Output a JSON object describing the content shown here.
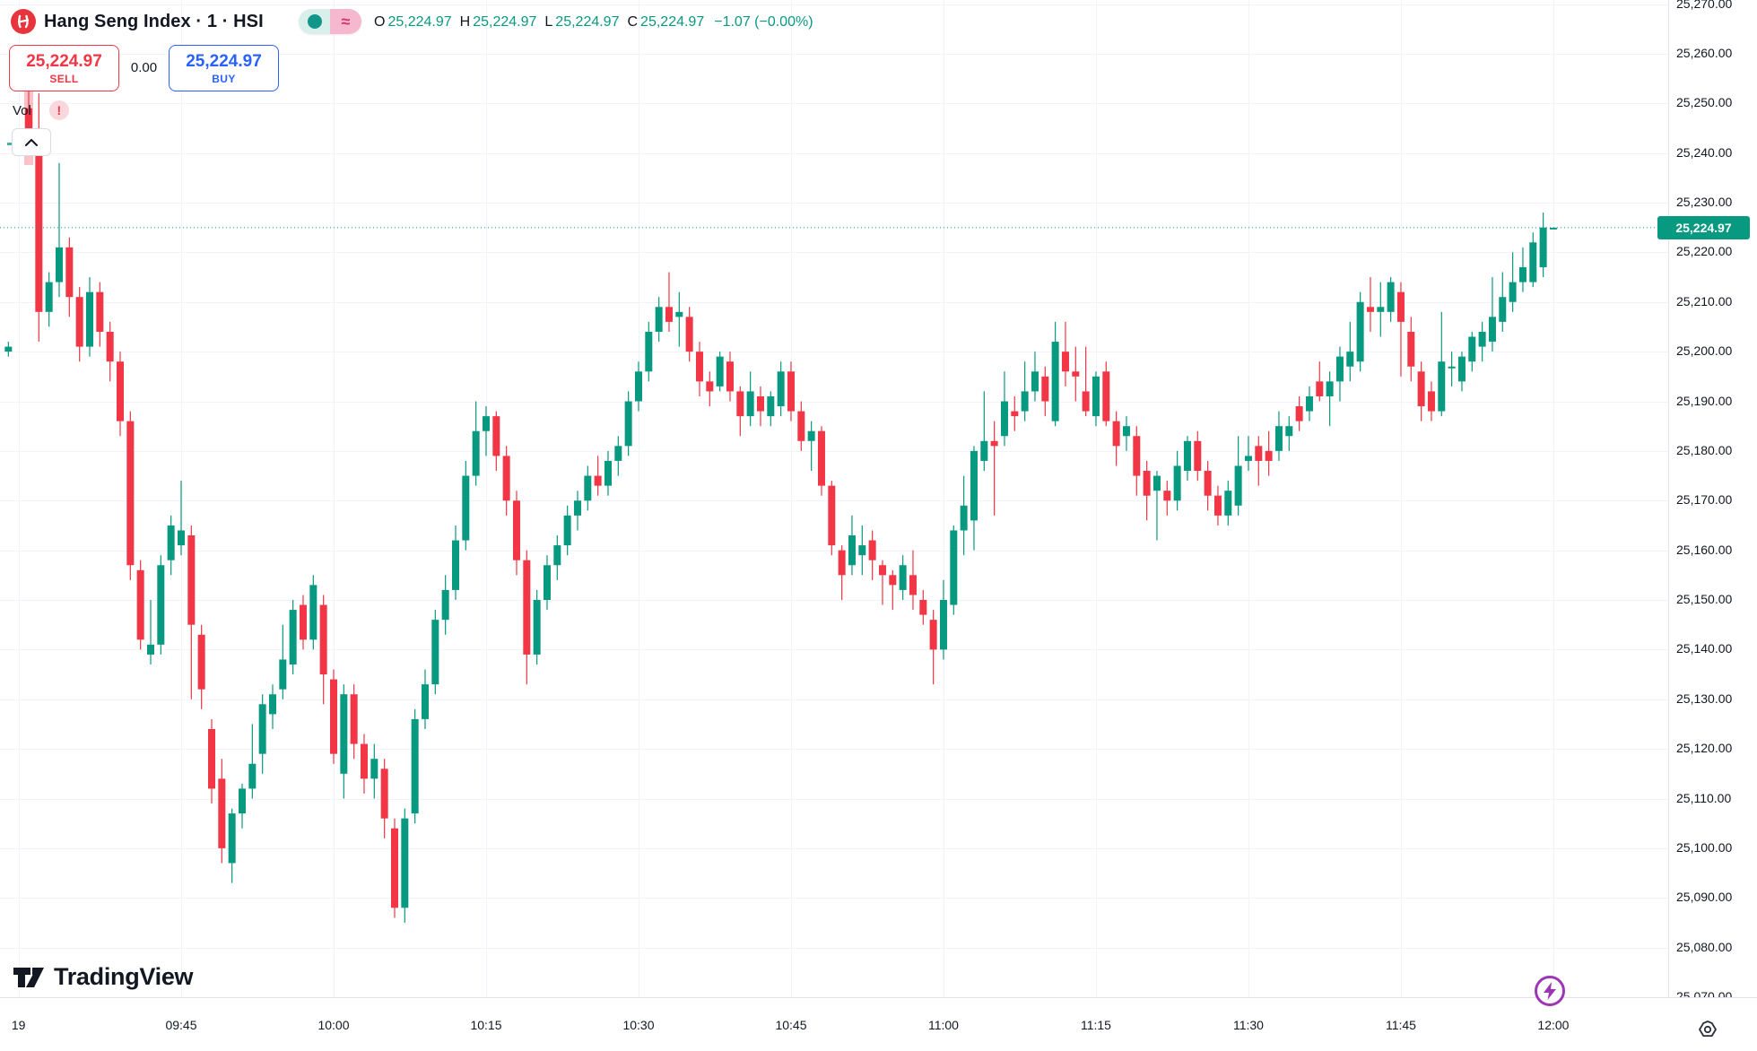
{
  "header": {
    "title": "Hang Seng Index · 1 · HSI",
    "status": {
      "open_icon": "green-dot",
      "approx_symbol": "≈"
    },
    "ohlc": {
      "o_label": "O",
      "o": "25,224.97",
      "h_label": "H",
      "h": "25,224.97",
      "l_label": "L",
      "l": "25,224.97",
      "c_label": "C",
      "c": "25,224.97",
      "change": "−1.07 (−0.00%)"
    }
  },
  "trade_panel": {
    "sell_price": "25,224.97",
    "sell_label": "SELL",
    "spread": "0.00",
    "buy_price": "25,224.97",
    "buy_label": "BUY"
  },
  "indicator": {
    "label": "Vol",
    "warning": "!"
  },
  "watermark": "TradingView",
  "axis": {
    "price_ticks": [
      "25,270.00",
      "25,260.00",
      "25,250.00",
      "25,240.00",
      "25,230.00",
      "25,220.00",
      "25,210.00",
      "25,200.00",
      "25,190.00",
      "25,180.00",
      "25,170.00",
      "25,160.00",
      "25,150.00",
      "25,140.00",
      "25,130.00",
      "25,120.00",
      "25,110.00",
      "25,100.00",
      "25,090.00",
      "25,080.00",
      "25,070.00"
    ],
    "time_ticks": [
      {
        "label": "19",
        "bar": -1
      },
      {
        "label": "09:45",
        "bar": 15
      },
      {
        "label": "10:00",
        "bar": 30
      },
      {
        "label": "10:15",
        "bar": 45
      },
      {
        "label": "10:30",
        "bar": 60
      },
      {
        "label": "10:45",
        "bar": 75
      },
      {
        "label": "11:00",
        "bar": 90
      },
      {
        "label": "11:15",
        "bar": 105
      },
      {
        "label": "11:30",
        "bar": 120
      },
      {
        "label": "11:45",
        "bar": 135
      },
      {
        "label": "12:00",
        "bar": 150
      }
    ],
    "current_price_label": "25,224.97"
  },
  "chart_data": {
    "type": "candlestick",
    "title": "Hang Seng Index, 1 minute, HSI",
    "ylim": [
      25070,
      25270
    ],
    "grid": true,
    "colors": {
      "up": "#089981",
      "down": "#f23645",
      "last_price_line": "#089981",
      "first_bar_highlight": "rgba(242,54,69,0.3)"
    },
    "current_price": 25224.97,
    "prev_bar": {
      "time": "09:28",
      "open": 25200,
      "high": 25202,
      "low": 25199,
      "close": 25201
    },
    "columns": [
      "time",
      "open",
      "high",
      "low",
      "close"
    ],
    "bars": [
      [
        "09:30",
        25249,
        25254,
        25240,
        25245
      ],
      [
        "09:31",
        25245,
        25252,
        25202,
        25208
      ],
      [
        "09:32",
        25208,
        25216,
        25205,
        25214
      ],
      [
        "09:33",
        25214,
        25238,
        25211,
        25221
      ],
      [
        "09:34",
        25221,
        25223,
        25207,
        25211
      ],
      [
        "09:35",
        25211,
        25213,
        25198,
        25201
      ],
      [
        "09:36",
        25201,
        25215,
        25199,
        25212
      ],
      [
        "09:37",
        25212,
        25214,
        25201,
        25204
      ],
      [
        "09:38",
        25204,
        25206,
        25194,
        25198
      ],
      [
        "09:39",
        25198,
        25200,
        25183,
        25186
      ],
      [
        "09:40",
        25186,
        25188,
        25154,
        25157
      ],
      [
        "09:41",
        25156,
        25158,
        25140,
        25142
      ],
      [
        "09:42",
        25139,
        25150,
        25137,
        25141
      ],
      [
        "09:43",
        25141,
        25159,
        25139,
        25157
      ],
      [
        "09:44",
        25158,
        25167,
        25155,
        25165
      ],
      [
        "09:45",
        25161,
        25174,
        25159,
        25164
      ],
      [
        "09:46",
        25163,
        25165,
        25130,
        25145
      ],
      [
        "09:47",
        25143,
        25145,
        25128,
        25132
      ],
      [
        "09:48",
        25124,
        25126,
        25109,
        25112
      ],
      [
        "09:49",
        25114,
        25118,
        25097,
        25100
      ],
      [
        "09:50",
        25097,
        25108,
        25093,
        25107
      ],
      [
        "09:51",
        25107,
        25113,
        25104,
        25112
      ],
      [
        "09:52",
        25112,
        25125,
        25110,
        25117
      ],
      [
        "09:53",
        25119,
        25131,
        25115,
        25129
      ],
      [
        "09:54",
        25127,
        25133,
        25124,
        25131
      ],
      [
        "09:55",
        25132,
        25145,
        25130,
        25138
      ],
      [
        "09:56",
        25137,
        25150,
        25135,
        25148
      ],
      [
        "09:57",
        25149,
        25151,
        25140,
        25142
      ],
      [
        "09:58",
        25142,
        25155,
        25140,
        25153
      ],
      [
        "09:59",
        25149,
        25151,
        25129,
        25135
      ],
      [
        "10:00",
        25134,
        25136,
        25117,
        25119
      ],
      [
        "10:01",
        25115,
        25133,
        25110,
        25131
      ],
      [
        "10:02",
        25131,
        25133,
        25118,
        25121
      ],
      [
        "10:03",
        25121,
        25123,
        25111,
        25114
      ],
      [
        "10:04",
        25114,
        25121,
        25110,
        25118
      ],
      [
        "10:05",
        25116,
        25118,
        25102,
        25106
      ],
      [
        "10:06",
        25104,
        25106,
        25086,
        25088
      ],
      [
        "10:07",
        25088,
        25108,
        25085,
        25106
      ],
      [
        "10:08",
        25107,
        25128,
        25105,
        25126
      ],
      [
        "10:09",
        25126,
        25136,
        25124,
        25133
      ],
      [
        "10:10",
        25133,
        25148,
        25131,
        25146
      ],
      [
        "10:11",
        25146,
        25155,
        25143,
        25152
      ],
      [
        "10:12",
        25152,
        25165,
        25150,
        25162
      ],
      [
        "10:13",
        25162,
        25178,
        25160,
        25175
      ],
      [
        "10:14",
        25175,
        25190,
        25173,
        25184
      ],
      [
        "10:15",
        25184,
        25189,
        25179,
        25187
      ],
      [
        "10:16",
        25187,
        25188,
        25176,
        25179
      ],
      [
        "10:17",
        25179,
        25181,
        25167,
        25170
      ],
      [
        "10:18",
        25170,
        25172,
        25155,
        25158
      ],
      [
        "10:19",
        25158,
        25160,
        25133,
        25139
      ],
      [
        "10:20",
        25139,
        25152,
        25137,
        25150
      ],
      [
        "10:21",
        25150,
        25159,
        25148,
        25157
      ],
      [
        "10:22",
        25157,
        25163,
        25154,
        25161
      ],
      [
        "10:23",
        25161,
        25169,
        25159,
        25167
      ],
      [
        "10:24",
        25167,
        25172,
        25164,
        25170
      ],
      [
        "10:25",
        25170,
        25177,
        25168,
        25175
      ],
      [
        "10:26",
        25175,
        25179,
        25171,
        25173
      ],
      [
        "10:27",
        25173,
        25180,
        25171,
        25178
      ],
      [
        "10:28",
        25178,
        25183,
        25175,
        25181
      ],
      [
        "10:29",
        25181,
        25192,
        25179,
        25190
      ],
      [
        "10:30",
        25190,
        25198,
        25188,
        25196
      ],
      [
        "10:31",
        25196,
        25206,
        25194,
        25204
      ],
      [
        "10:32",
        25204,
        25211,
        25202,
        25209
      ],
      [
        "10:33",
        25209,
        25216,
        25204,
        25206
      ],
      [
        "10:34",
        25207,
        25212,
        25201,
        25208
      ],
      [
        "10:35",
        25207,
        25209,
        25198,
        25200
      ],
      [
        "10:36",
        25200,
        25202,
        25191,
        25194
      ],
      [
        "10:37",
        25194,
        25196,
        25189,
        25192
      ],
      [
        "10:38",
        25193,
        25200,
        25192,
        25199
      ],
      [
        "10:39",
        25198,
        25200,
        25190,
        25192
      ],
      [
        "10:40",
        25192,
        25193,
        25183,
        25187
      ],
      [
        "10:41",
        25187,
        25196,
        25185,
        25192
      ],
      [
        "10:42",
        25191,
        25193,
        25185,
        25188
      ],
      [
        "10:43",
        25187,
        25192,
        25185,
        25191
      ],
      [
        "10:44",
        25189,
        25198,
        25187,
        25196
      ],
      [
        "10:45",
        25196,
        25198,
        25186,
        25188
      ],
      [
        "10:46",
        25188,
        25190,
        25180,
        25182
      ],
      [
        "10:47",
        25182,
        25186,
        25176,
        25184
      ],
      [
        "10:48",
        25184,
        25185,
        25171,
        25173
      ],
      [
        "10:49",
        25173,
        25174,
        25159,
        25161
      ],
      [
        "10:50",
        25160,
        25161,
        25150,
        25155
      ],
      [
        "10:51",
        25157,
        25167,
        25155,
        25163
      ],
      [
        "10:52",
        25159,
        25165,
        25155,
        25161
      ],
      [
        "10:53",
        25162,
        25164,
        25154,
        25158
      ],
      [
        "10:54",
        25157,
        25158,
        25149,
        25155
      ],
      [
        "10:55",
        25155,
        25156,
        25148,
        25153
      ],
      [
        "10:56",
        25152,
        25159,
        25150,
        25157
      ],
      [
        "10:57",
        25155,
        25160,
        25148,
        25151
      ],
      [
        "10:58",
        25150,
        25152,
        25145,
        25147
      ],
      [
        "10:59",
        25146,
        25148,
        25133,
        25140
      ],
      [
        "11:00",
        25140,
        25154,
        25138,
        25150
      ],
      [
        "11:01",
        25149,
        25165,
        25147,
        25164
      ],
      [
        "11:02",
        25164,
        25175,
        25159,
        25169
      ],
      [
        "11:03",
        25166,
        25181,
        25160,
        25180
      ],
      [
        "11:04",
        25178,
        25192,
        25176,
        25182
      ],
      [
        "11:05",
        25182,
        25186,
        25167,
        25181
      ],
      [
        "11:06",
        25183,
        25196,
        25181,
        25190
      ],
      [
        "11:07",
        25188,
        25191,
        25184,
        25187
      ],
      [
        "11:08",
        25188,
        25198,
        25186,
        25192
      ],
      [
        "11:09",
        25192,
        25200,
        25190,
        25196
      ],
      [
        "11:10",
        25195,
        25197,
        25187,
        25190
      ],
      [
        "11:11",
        25186,
        25206,
        25185,
        25202
      ],
      [
        "11:12",
        25200,
        25206,
        25193,
        25196
      ],
      [
        "11:13",
        25196,
        25201,
        25190,
        25195
      ],
      [
        "11:14",
        25192,
        25201,
        25187,
        25188
      ],
      [
        "11:15",
        25187,
        25196,
        25185,
        25195
      ],
      [
        "11:16",
        25196,
        25198,
        25185,
        25186
      ],
      [
        "11:17",
        25186,
        25188,
        25177,
        25181
      ],
      [
        "11:18",
        25183,
        25187,
        25180,
        25185
      ],
      [
        "11:19",
        25183,
        25185,
        25171,
        25175
      ],
      [
        "11:20",
        25176,
        25178,
        25166,
        25171
      ],
      [
        "11:21",
        25172,
        25176,
        25162,
        25175
      ],
      [
        "11:22",
        25172,
        25174,
        25167,
        25170
      ],
      [
        "11:23",
        25170,
        25180,
        25168,
        25177
      ],
      [
        "11:24",
        25176,
        25183,
        25174,
        25182
      ],
      [
        "11:25",
        25182,
        25184,
        25174,
        25176
      ],
      [
        "11:26",
        25176,
        25178,
        25168,
        25171
      ],
      [
        "11:27",
        25171,
        25173,
        25165,
        25167
      ],
      [
        "11:28",
        25167,
        25174,
        25165,
        25172
      ],
      [
        "11:29",
        25169,
        25183,
        25167,
        25177
      ],
      [
        "11:30",
        25178,
        25183,
        25176,
        25179
      ],
      [
        "11:31",
        25181,
        25183,
        25173,
        25178
      ],
      [
        "11:32",
        25180,
        25184,
        25175,
        25178
      ],
      [
        "11:33",
        25180,
        25188,
        25178,
        25185
      ],
      [
        "11:34",
        25183,
        25187,
        25180,
        25185
      ],
      [
        "11:35",
        25189,
        25191,
        25184,
        25186
      ],
      [
        "11:36",
        25188,
        25193,
        25186,
        25191
      ],
      [
        "11:37",
        25194,
        25198,
        25190,
        25191
      ],
      [
        "11:38",
        25191,
        25196,
        25185,
        25194
      ],
      [
        "11:39",
        25194,
        25201,
        25190,
        25199
      ],
      [
        "11:40",
        25197,
        25206,
        25194,
        25200
      ],
      [
        "11:41",
        25198,
        25212,
        25196,
        25210
      ],
      [
        "11:42",
        25209,
        25215,
        25204,
        25208
      ],
      [
        "11:43",
        25208,
        25214,
        25203,
        25209
      ],
      [
        "11:44",
        25208,
        25215,
        25206,
        25214
      ],
      [
        "11:45",
        25212,
        25214,
        25195,
        25206
      ],
      [
        "11:46",
        25204,
        25207,
        25194,
        25197
      ],
      [
        "11:47",
        25196,
        25198,
        25186,
        25189
      ],
      [
        "11:48",
        25192,
        25194,
        25186,
        25188
      ],
      [
        "11:49",
        25188,
        25208,
        25187,
        25198
      ],
      [
        "11:50",
        25197,
        25200,
        25193,
        25197
      ],
      [
        "11:51",
        25194,
        25200,
        25192,
        25199
      ],
      [
        "11:52",
        25198,
        25204,
        25196,
        25203
      ],
      [
        "11:53",
        25201,
        25206,
        25198,
        25204
      ],
      [
        "11:54",
        25202,
        25215,
        25200,
        25207
      ],
      [
        "11:55",
        25206,
        25216,
        25204,
        25211
      ],
      [
        "11:56",
        25210,
        25220,
        25208,
        25214
      ],
      [
        "11:57",
        25214,
        25221,
        25212,
        25217
      ],
      [
        "11:58",
        25214,
        25224,
        25213,
        25222
      ],
      [
        "11:59",
        25217,
        25228,
        25215,
        25225
      ],
      [
        "12:00",
        25224.97,
        25224.97,
        25224.97,
        25224.97
      ]
    ]
  }
}
